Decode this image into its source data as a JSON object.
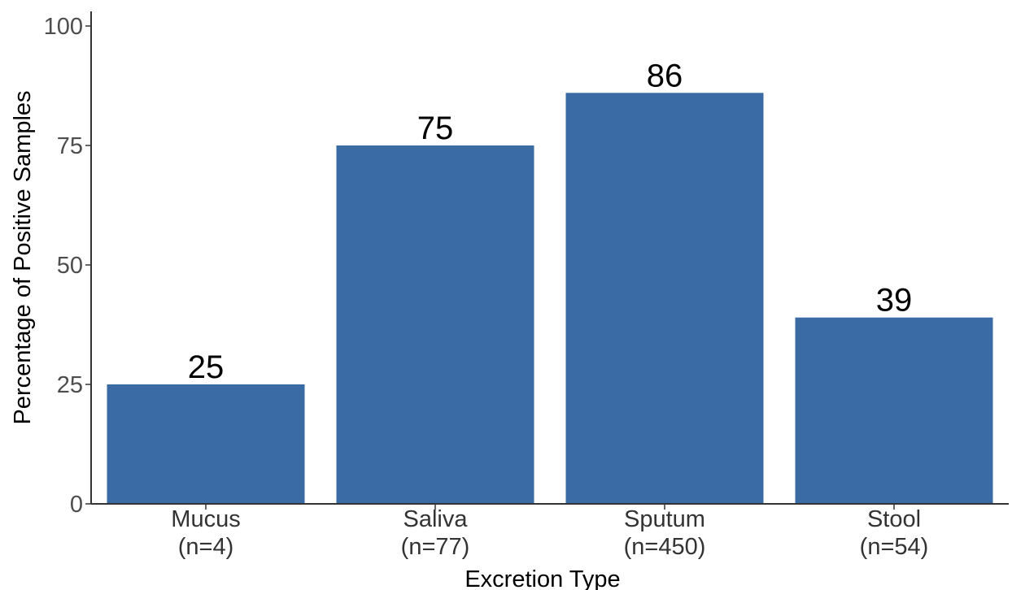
{
  "chart_data": {
    "type": "bar",
    "title": "",
    "xlabel": "Excretion Type",
    "ylabel": "Percentage of Positive Samples",
    "categories": [
      [
        "Mucus",
        "(n=4)"
      ],
      [
        "Saliva",
        "(n=77)"
      ],
      [
        "Sputum",
        "(n=450)"
      ],
      [
        "Stool",
        "(n=54)"
      ]
    ],
    "values": [
      25,
      75,
      86,
      39
    ],
    "data_labels": [
      "25",
      "75",
      "86",
      "39"
    ],
    "ylim": [
      0,
      100
    ],
    "yticks": [
      0,
      25,
      50,
      75,
      100
    ],
    "grid": false,
    "legend": "none",
    "bar_color": "#3a6ba5",
    "axis_color": "#333333"
  }
}
